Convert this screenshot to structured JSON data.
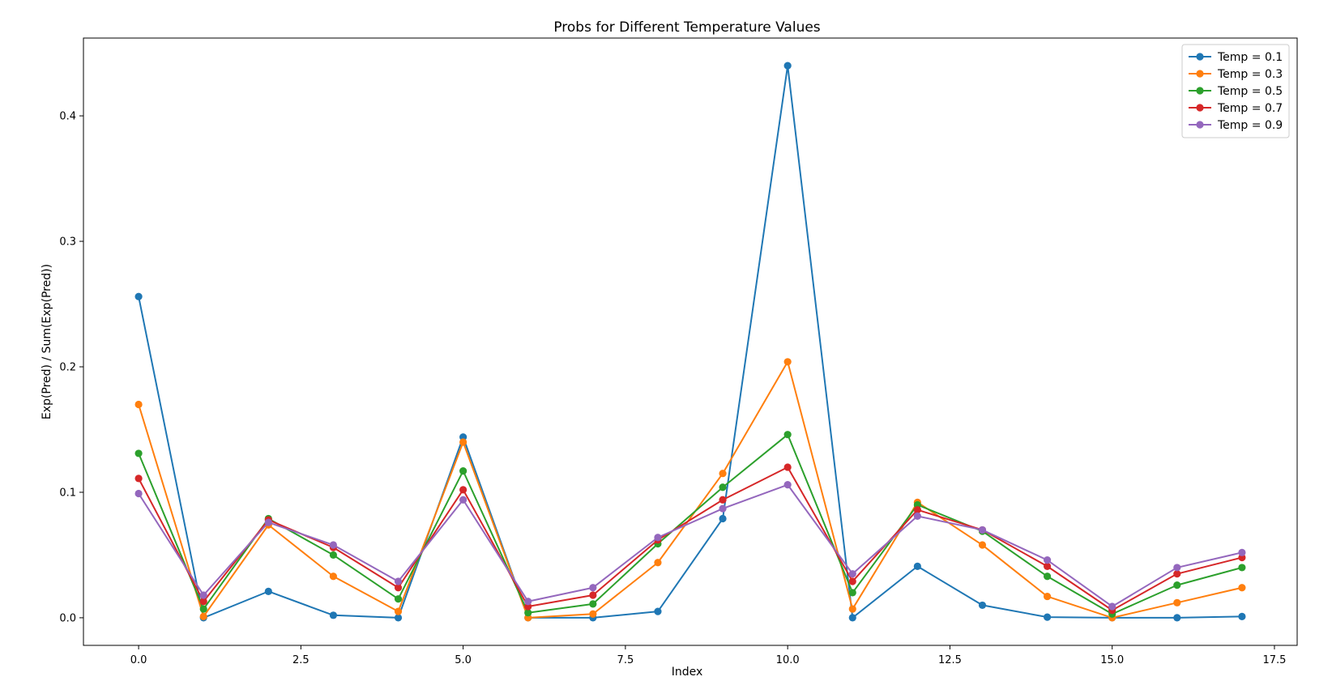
{
  "chart_data": {
    "type": "line",
    "title": "Probs for Different Temperature Values",
    "xlabel": "Index",
    "ylabel": "Exp(Pred) / Sum(Exp(Pred))",
    "xlim": [
      -0.85,
      17.85
    ],
    "ylim": [
      -0.022,
      0.462
    ],
    "xticks": [
      0.0,
      2.5,
      5.0,
      7.5,
      10.0,
      12.5,
      15.0,
      17.5
    ],
    "xtick_labels": [
      "0.0",
      "2.5",
      "5.0",
      "7.5",
      "10.0",
      "12.5",
      "15.0",
      "17.5"
    ],
    "yticks": [
      0.0,
      0.1,
      0.2,
      0.3,
      0.4
    ],
    "ytick_labels": [
      "0.0",
      "0.1",
      "0.2",
      "0.3",
      "0.4"
    ],
    "grid": false,
    "legend_position": "top-right",
    "x": [
      0,
      1,
      2,
      3,
      4,
      5,
      6,
      7,
      8,
      9,
      10,
      11,
      12,
      13,
      14,
      15,
      16,
      17
    ],
    "series": [
      {
        "name": "Temp = 0.1",
        "color": "#1f77b4",
        "values": [
          0.256,
          0.0,
          0.021,
          0.002,
          0.0,
          0.144,
          0.0,
          0.0,
          0.005,
          0.079,
          0.44,
          0.0,
          0.041,
          0.01,
          0.0005,
          0.0,
          0.0,
          0.001
        ]
      },
      {
        "name": "Temp = 0.3",
        "color": "#ff7f0e",
        "values": [
          0.17,
          0.001,
          0.074,
          0.033,
          0.005,
          0.14,
          0.0,
          0.003,
          0.044,
          0.115,
          0.204,
          0.007,
          0.092,
          0.058,
          0.017,
          0.0,
          0.012,
          0.024
        ]
      },
      {
        "name": "Temp = 0.5",
        "color": "#2ca02c",
        "values": [
          0.131,
          0.007,
          0.079,
          0.05,
          0.015,
          0.117,
          0.004,
          0.011,
          0.059,
          0.104,
          0.146,
          0.02,
          0.09,
          0.069,
          0.033,
          0.003,
          0.026,
          0.04
        ]
      },
      {
        "name": "Temp = 0.7",
        "color": "#d62728",
        "values": [
          0.111,
          0.013,
          0.078,
          0.056,
          0.024,
          0.102,
          0.009,
          0.018,
          0.062,
          0.094,
          0.12,
          0.029,
          0.086,
          0.07,
          0.041,
          0.006,
          0.035,
          0.048
        ]
      },
      {
        "name": "Temp = 0.9",
        "color": "#9467bd",
        "values": [
          0.099,
          0.018,
          0.076,
          0.058,
          0.029,
          0.094,
          0.013,
          0.024,
          0.064,
          0.087,
          0.106,
          0.035,
          0.081,
          0.07,
          0.046,
          0.009,
          0.04,
          0.052
        ]
      }
    ]
  }
}
